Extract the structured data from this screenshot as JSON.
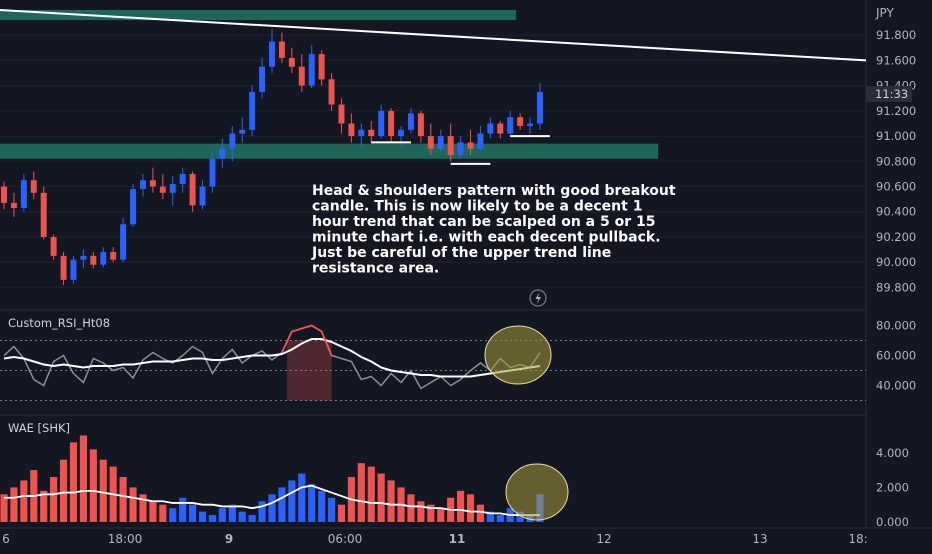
{
  "chart_data": [
    {
      "type": "candlestick",
      "currency": "JPY",
      "ylim": [
        89.7,
        92.0
      ],
      "y_ticks": [
        "91.800",
        "91.600",
        "91.400",
        "91.200",
        "91.000",
        "90.800",
        "90.600",
        "90.400",
        "90.200",
        "90.000",
        "89.800"
      ],
      "last_price_label": "11:33",
      "candles": [
        {
          "o": 90.6,
          "h": 90.64,
          "l": 90.42,
          "c": 90.47
        },
        {
          "o": 90.47,
          "h": 90.55,
          "l": 90.36,
          "c": 90.43
        },
        {
          "o": 90.43,
          "h": 90.7,
          "l": 90.4,
          "c": 90.65
        },
        {
          "o": 90.65,
          "h": 90.72,
          "l": 90.5,
          "c": 90.55
        },
        {
          "o": 90.55,
          "h": 90.6,
          "l": 90.18,
          "c": 90.2
        },
        {
          "o": 90.2,
          "h": 90.22,
          "l": 90.02,
          "c": 90.05
        },
        {
          "o": 90.05,
          "h": 90.08,
          "l": 89.82,
          "c": 89.86
        },
        {
          "o": 89.86,
          "h": 90.05,
          "l": 89.83,
          "c": 90.02
        },
        {
          "o": 90.02,
          "h": 90.1,
          "l": 89.95,
          "c": 90.05
        },
        {
          "o": 90.05,
          "h": 90.08,
          "l": 89.95,
          "c": 89.98
        },
        {
          "o": 89.98,
          "h": 90.12,
          "l": 89.96,
          "c": 90.08
        },
        {
          "o": 90.08,
          "h": 90.12,
          "l": 90.0,
          "c": 90.02
        },
        {
          "o": 90.02,
          "h": 90.35,
          "l": 90.0,
          "c": 90.3
        },
        {
          "o": 90.3,
          "h": 90.62,
          "l": 90.28,
          "c": 90.58
        },
        {
          "o": 90.58,
          "h": 90.7,
          "l": 90.52,
          "c": 90.65
        },
        {
          "o": 90.65,
          "h": 90.75,
          "l": 90.55,
          "c": 90.6
        },
        {
          "o": 90.6,
          "h": 90.7,
          "l": 90.5,
          "c": 90.55
        },
        {
          "o": 90.55,
          "h": 90.68,
          "l": 90.45,
          "c": 90.62
        },
        {
          "o": 90.62,
          "h": 90.75,
          "l": 90.55,
          "c": 90.7
        },
        {
          "o": 90.7,
          "h": 90.72,
          "l": 90.4,
          "c": 90.45
        },
        {
          "o": 90.45,
          "h": 90.65,
          "l": 90.42,
          "c": 90.6
        },
        {
          "o": 90.6,
          "h": 90.88,
          "l": 90.55,
          "c": 90.82
        },
        {
          "o": 90.82,
          "h": 90.98,
          "l": 90.75,
          "c": 90.9
        },
        {
          "o": 90.9,
          "h": 91.08,
          "l": 90.8,
          "c": 91.02
        },
        {
          "o": 91.02,
          "h": 91.15,
          "l": 90.95,
          "c": 91.05
        },
        {
          "o": 91.05,
          "h": 91.4,
          "l": 91.0,
          "c": 91.35
        },
        {
          "o": 91.35,
          "h": 91.62,
          "l": 91.3,
          "c": 91.55
        },
        {
          "o": 91.55,
          "h": 91.85,
          "l": 91.5,
          "c": 91.75
        },
        {
          "o": 91.75,
          "h": 91.82,
          "l": 91.58,
          "c": 91.62
        },
        {
          "o": 91.62,
          "h": 91.7,
          "l": 91.5,
          "c": 91.55
        },
        {
          "o": 91.55,
          "h": 91.65,
          "l": 91.35,
          "c": 91.4
        },
        {
          "o": 91.4,
          "h": 91.72,
          "l": 91.38,
          "c": 91.65
        },
        {
          "o": 91.65,
          "h": 91.68,
          "l": 91.4,
          "c": 91.45
        },
        {
          "o": 91.45,
          "h": 91.5,
          "l": 91.2,
          "c": 91.25
        },
        {
          "o": 91.25,
          "h": 91.3,
          "l": 91.02,
          "c": 91.1
        },
        {
          "o": 91.1,
          "h": 91.18,
          "l": 90.95,
          "c": 91.0
        },
        {
          "o": 91.0,
          "h": 91.1,
          "l": 90.92,
          "c": 91.05
        },
        {
          "o": 91.05,
          "h": 91.12,
          "l": 90.95,
          "c": 91.0
        },
        {
          "o": 91.0,
          "h": 91.25,
          "l": 90.98,
          "c": 91.2
        },
        {
          "o": 91.2,
          "h": 91.22,
          "l": 90.95,
          "c": 91.0
        },
        {
          "o": 91.0,
          "h": 91.08,
          "l": 90.92,
          "c": 91.05
        },
        {
          "o": 91.05,
          "h": 91.22,
          "l": 91.02,
          "c": 91.18
        },
        {
          "o": 91.18,
          "h": 91.2,
          "l": 90.95,
          "c": 91.0
        },
        {
          "o": 91.0,
          "h": 91.1,
          "l": 90.85,
          "c": 90.9
        },
        {
          "o": 90.9,
          "h": 91.05,
          "l": 90.88,
          "c": 91.0
        },
        {
          "o": 91.0,
          "h": 91.1,
          "l": 90.8,
          "c": 90.85
        },
        {
          "o": 90.85,
          "h": 91.0,
          "l": 90.82,
          "c": 90.95
        },
        {
          "o": 90.95,
          "h": 91.05,
          "l": 90.85,
          "c": 90.9
        },
        {
          "o": 90.9,
          "h": 91.08,
          "l": 90.88,
          "c": 91.02
        },
        {
          "o": 91.02,
          "h": 91.15,
          "l": 90.98,
          "c": 91.1
        },
        {
          "o": 91.1,
          "h": 91.12,
          "l": 90.98,
          "c": 91.02
        },
        {
          "o": 91.02,
          "h": 91.2,
          "l": 91.0,
          "c": 91.15
        },
        {
          "o": 91.15,
          "h": 91.18,
          "l": 91.05,
          "c": 91.08
        },
        {
          "o": 91.08,
          "h": 91.15,
          "l": 91.02,
          "c": 91.1
        },
        {
          "o": 91.1,
          "h": 91.42,
          "l": 91.05,
          "c": 91.35
        }
      ],
      "zones": [
        {
          "from": 91.92,
          "to": 92.0,
          "x_end_frac": 0.596,
          "color": "#1f6b5c"
        },
        {
          "from": 90.82,
          "to": 90.94,
          "x_end_frac": 0.76,
          "color": "#1f6b5c"
        }
      ],
      "trend_line": {
        "y_start": 92.0,
        "y_end": 91.6
      },
      "annotation": "Head & shoulders pattern with good breakout candle. This is now likely to be a decent 1 hour trend that can be scalped on a 5 or 15 minute chart i.e. with each decent pullback. Just be careful of the upper trend line resistance area."
    },
    {
      "type": "line",
      "name": "Custom_RSI_Ht08",
      "ylim": [
        25,
        85
      ],
      "y_ticks": [
        "80.000",
        "60.000",
        "40.000"
      ],
      "levels": [
        70,
        50,
        30
      ],
      "series": [
        {
          "name": "rsi",
          "color": "#8a8f99",
          "values": [
            60,
            66,
            58,
            44,
            40,
            56,
            60,
            48,
            42,
            58,
            55,
            50,
            52,
            45,
            57,
            62,
            58,
            55,
            60,
            66,
            62,
            48,
            58,
            64,
            55,
            60,
            63,
            57,
            62,
            76,
            78,
            80,
            76,
            60,
            58,
            56,
            44,
            46,
            40,
            48,
            42,
            50,
            38,
            42,
            46,
            40,
            44,
            50,
            55,
            50,
            58,
            52,
            54,
            52,
            62
          ]
        },
        {
          "name": "rsi_ma",
          "color": "#ffffff",
          "values": [
            58,
            59,
            58,
            56,
            54,
            53,
            54,
            53,
            52,
            53,
            53,
            53,
            54,
            54,
            55,
            56,
            56,
            56,
            57,
            58,
            58,
            57,
            57,
            58,
            59,
            60,
            60,
            60,
            61,
            64,
            68,
            71,
            71,
            69,
            66,
            63,
            59,
            56,
            52,
            50,
            49,
            48,
            47,
            47,
            46,
            46,
            46,
            46,
            47,
            48,
            49,
            50,
            51,
            52,
            53
          ]
        }
      ]
    },
    {
      "type": "bar",
      "name": "WAE [SHK]",
      "ylim": [
        0,
        5.2
      ],
      "y_ticks": [
        "4.000",
        "2.000",
        "0.000"
      ],
      "series": [
        {
          "name": "histogram",
          "values": [
            1.6,
            2.0,
            2.4,
            3.0,
            1.8,
            2.6,
            3.6,
            4.6,
            5.0,
            4.2,
            3.6,
            3.2,
            2.6,
            2.0,
            1.6,
            1.2,
            1.0,
            0.8,
            1.4,
            1.0,
            0.6,
            0.4,
            0.8,
            1.0,
            0.6,
            0.4,
            1.2,
            1.6,
            2.0,
            2.4,
            2.8,
            2.2,
            1.8,
            1.4,
            1.0,
            2.6,
            3.4,
            3.2,
            2.8,
            2.4,
            2.0,
            1.6,
            1.2,
            1.0,
            0.8,
            1.4,
            1.8,
            1.6,
            1.0,
            0.6,
            0.4,
            0.8,
            0.6,
            0.4,
            1.6
          ],
          "colors": [
            "r",
            "r",
            "r",
            "r",
            "r",
            "r",
            "r",
            "r",
            "r",
            "r",
            "r",
            "r",
            "r",
            "r",
            "r",
            "r",
            "r",
            "b",
            "b",
            "b",
            "b",
            "b",
            "b",
            "b",
            "b",
            "b",
            "b",
            "b",
            "b",
            "b",
            "b",
            "b",
            "b",
            "b",
            "r",
            "r",
            "r",
            "r",
            "r",
            "r",
            "r",
            "r",
            "r",
            "r",
            "r",
            "r",
            "r",
            "r",
            "r",
            "b",
            "b",
            "b",
            "b",
            "b",
            "b"
          ]
        },
        {
          "name": "explosion_line",
          "color": "#ffffff",
          "values": [
            1.4,
            1.4,
            1.5,
            1.5,
            1.6,
            1.6,
            1.7,
            1.7,
            1.8,
            1.8,
            1.7,
            1.6,
            1.5,
            1.4,
            1.3,
            1.2,
            1.2,
            1.1,
            1.1,
            1.1,
            1.0,
            1.0,
            0.9,
            0.9,
            0.9,
            0.8,
            0.9,
            1.1,
            1.4,
            1.7,
            2.0,
            2.1,
            1.9,
            1.7,
            1.5,
            1.3,
            1.2,
            1.1,
            1.1,
            1.0,
            1.0,
            0.9,
            0.9,
            0.8,
            0.8,
            0.7,
            0.7,
            0.6,
            0.6,
            0.5,
            0.5,
            0.4,
            0.4,
            0.4,
            0.4
          ]
        }
      ],
      "bar_colors": {
        "r": "#ef5350",
        "b": "#2962ff"
      }
    }
  ],
  "time_axis": {
    "labels": [
      "6",
      "18:00",
      "9",
      "06:00",
      "11",
      "12",
      "13",
      "18:"
    ]
  }
}
